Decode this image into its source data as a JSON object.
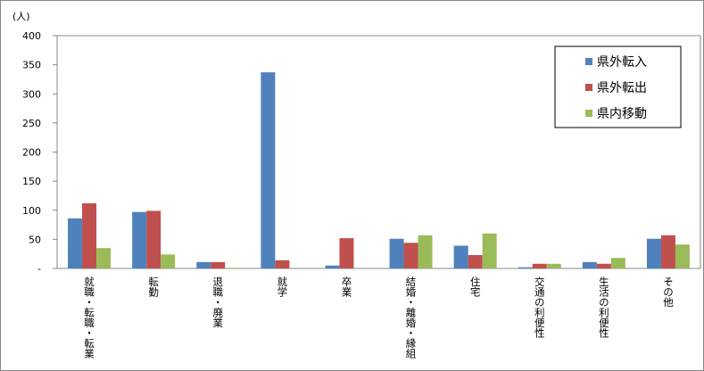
{
  "chart_data": {
    "type": "bar",
    "y_label": "(人)",
    "categories": [
      "就職・転職・転業",
      "転勤",
      "退職・廃業",
      "就学",
      "卒業",
      "結婚・離婚・縁組",
      "住宅",
      "交通の利便性",
      "生活の利便性",
      "その他"
    ],
    "series": [
      {
        "name": "県外転入",
        "color": "#4f81bd",
        "values": [
          86,
          97,
          11,
          337,
          5,
          51,
          39,
          2,
          11,
          51
        ]
      },
      {
        "name": "県外転出",
        "color": "#c0504d",
        "values": [
          112,
          99,
          11,
          14,
          52,
          44,
          23,
          8,
          8,
          57
        ]
      },
      {
        "name": "県内移動",
        "color": "#9bbb59",
        "values": [
          35,
          24,
          1,
          0,
          0,
          57,
          60,
          8,
          18,
          41
        ]
      }
    ],
    "ylim": [
      0,
      400
    ],
    "yticks": [
      {
        "value": 0,
        "label": "-"
      },
      50,
      100,
      150,
      200,
      250,
      300,
      350,
      400
    ],
    "grid": false,
    "legend": "upper right"
  }
}
